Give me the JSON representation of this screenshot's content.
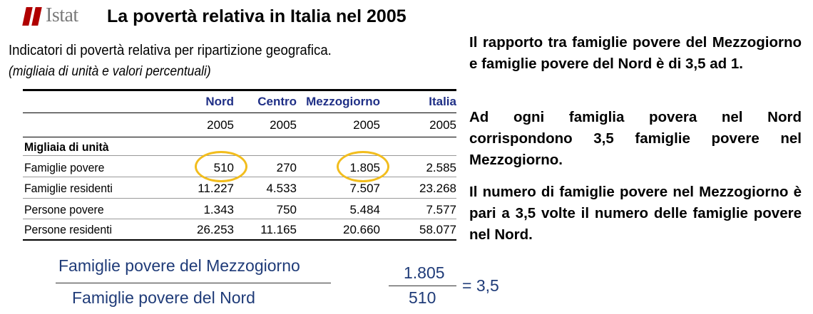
{
  "header": {
    "brand": "Istat",
    "title": "La povertà relativa in Italia nel 2005"
  },
  "table": {
    "title": "Indicatori di povertà relativa per ripartizione geografica.",
    "subtitle": "(migliaia di unità e valori percentuali)",
    "columns": [
      "Nord",
      "Centro",
      "Mezzogiorno",
      "Italia"
    ],
    "years": [
      "2005",
      "2005",
      "2005",
      "2005"
    ],
    "section": "Migliaia di unità",
    "rows": [
      {
        "label": "Famiglie povere",
        "values": [
          "510",
          "270",
          "1.805",
          "2.585"
        ]
      },
      {
        "label": "Famiglie residenti",
        "values": [
          "11.227",
          "4.533",
          "7.507",
          "23.268"
        ]
      },
      {
        "label": "Persone povere",
        "values": [
          "1.343",
          "750",
          "5.484",
          "7.577"
        ]
      },
      {
        "label": "Persone residenti",
        "values": [
          "26.253",
          "11.165",
          "20.660",
          "58.077"
        ]
      }
    ],
    "highlight_color": "#f2bd1d"
  },
  "paragraphs": [
    "Il rapporto tra famiglie povere del Mezzogiorno e famiglie povere del Nord è di 3,5 ad 1.",
    "Ad ogni famiglia povera nel Nord corrispondono 3,5 famiglie povere nel Mezzogiorno.",
    "Il numero di famiglie povere nel Mezzogiorno è pari a 3,5 volte il numero delle famiglie povere nel Nord."
  ],
  "formula": {
    "numerator_text": "Famiglie povere del Mezzogiorno",
    "denominator_text": "Famiglie povere del Nord",
    "numerator_value": "1.805",
    "denominator_value": "510",
    "result": "= 3,5"
  },
  "colors": {
    "header_blue": "#1f2f86",
    "formula_blue": "#1f3b78",
    "logo_red": "#b00000"
  }
}
